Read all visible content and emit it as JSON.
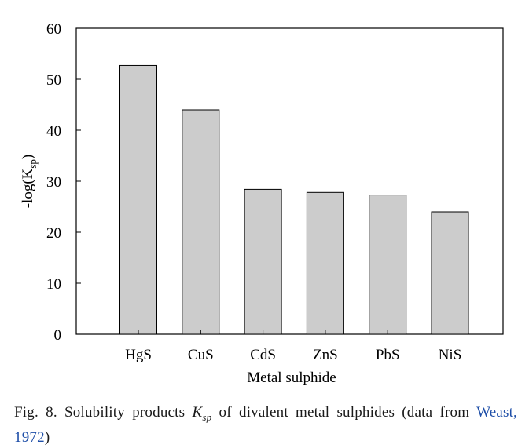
{
  "chart_data": {
    "type": "bar",
    "categories": [
      "HgS",
      "CuS",
      "CdS",
      "ZnS",
      "PbS",
      "NiS"
    ],
    "values": [
      52.7,
      44.0,
      28.4,
      27.8,
      27.3,
      24.0
    ],
    "ylim": [
      0,
      60
    ],
    "yticks": [
      0,
      10,
      20,
      30,
      40,
      50,
      60
    ],
    "xlabel": "Metal sulphide",
    "ylabel_main": "-log(K",
    "ylabel_sub": "sp",
    "ylabel_close": ")",
    "bar_color": "#cccccc",
    "grid": false
  },
  "caption": {
    "prefix": "Fig. 8. Solubility products ",
    "k": "K",
    "sub": "sp",
    "middle": " of divalent metal sulphides (data from ",
    "ref": "Weast, 1972",
    "suffix": ")"
  }
}
